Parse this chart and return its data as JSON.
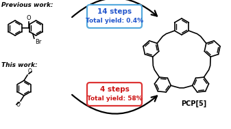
{
  "bg_color": "#ffffff",
  "prev_work_label": "Previous work:",
  "this_work_label": "This work:",
  "top_box_line1": "14 steps",
  "top_box_line2": "Total yield: 0.4%",
  "bottom_box_line1": "4 steps",
  "bottom_box_line2": "Total yield: 58%",
  "top_box_edge": "#55aadd",
  "bottom_box_edge": "#dd3333",
  "pcp_label": "PCP[5]",
  "text_color_blue": "#2255cc",
  "text_color_red": "#cc1111"
}
